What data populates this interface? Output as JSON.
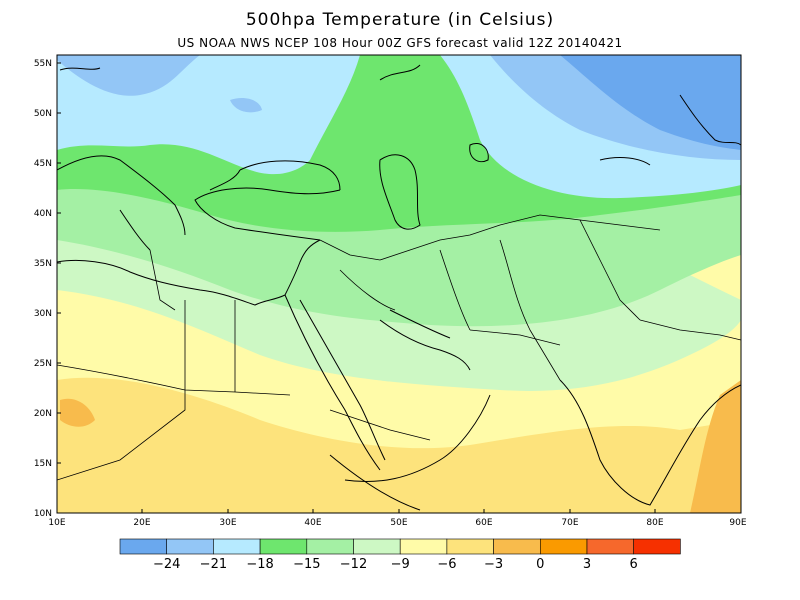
{
  "header": {
    "title": "500hpa  Temperature (in Celsius)",
    "subtitle": "US NOAA NWS NCEP 108 Hour 00Z GFS forecast valid 12Z 20140421"
  },
  "map": {
    "lat_labels": [
      "10N",
      "15N",
      "20N",
      "25N",
      "30N",
      "35N",
      "40N",
      "45N",
      "50N",
      "55N"
    ],
    "lon_labels": [
      "10E",
      "20E",
      "30E",
      "40E",
      "50E",
      "60E",
      "70E",
      "80E",
      "90E"
    ]
  },
  "legend": {
    "colors": [
      "#6aa8ee",
      "#93c6f6",
      "#b6eaff",
      "#6ee66e",
      "#a4f0a4",
      "#cdf8c4",
      "#fffba8",
      "#fde37c",
      "#f8bb4c",
      "#fa9a00",
      "#f6682c",
      "#f63000"
    ],
    "labels": [
      "−24",
      "−21",
      "−18",
      "−15",
      "−12",
      "−9",
      "−6",
      "−3",
      "0",
      "3",
      "6"
    ]
  }
}
